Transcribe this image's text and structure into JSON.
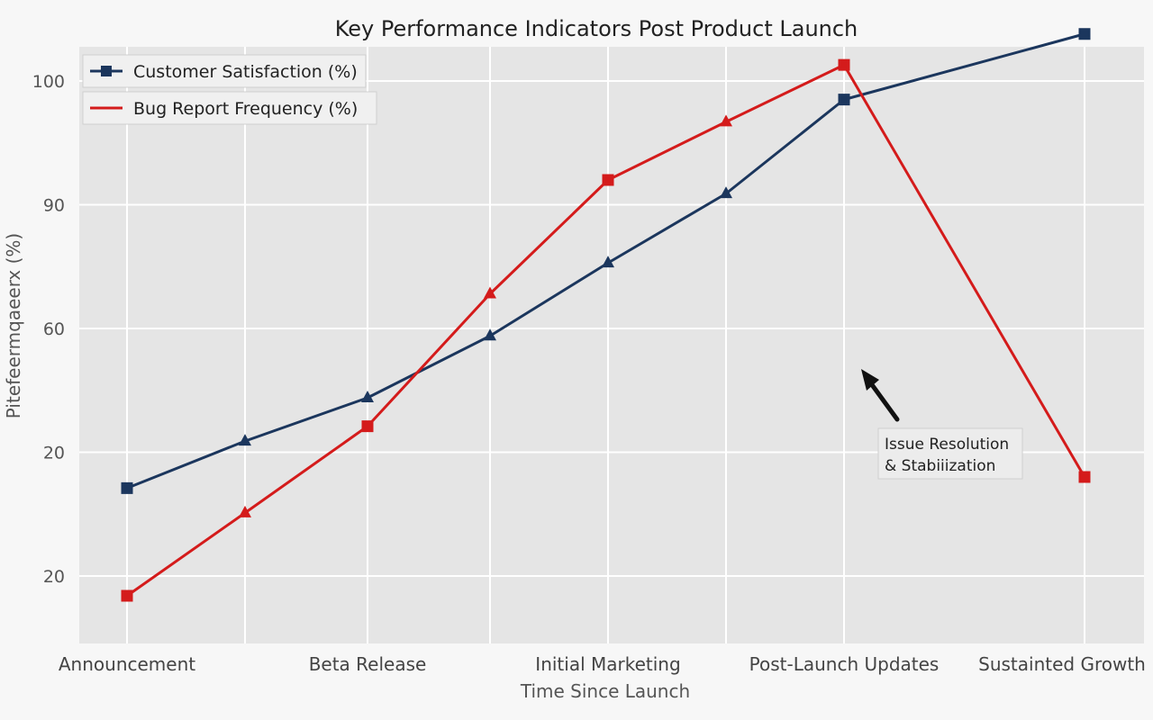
{
  "chart_data": {
    "type": "line",
    "title": "Key Performance Indicators Post Product Launch",
    "xlabel": "Time Since Launch",
    "ylabel": "Pitefeermqaeerx (%)",
    "y_tick_labels": [
      "20",
      "20",
      "60",
      "90",
      "100"
    ],
    "categories": [
      "Announcement",
      "",
      "Beta Release",
      "",
      "Initial Marketing",
      "",
      "Post-Launch Updates",
      "Sustainted Growth"
    ],
    "series": [
      {
        "name": "Customer Satisfaction (%)",
        "color": "#1b365d",
        "marker": "square",
        "values": [
          0.355,
          0.545,
          0.72,
          0.97,
          1.265,
          1.545,
          1.925,
          2.19
        ],
        "markers": [
          "square",
          "triangle",
          "triangle",
          "triangle",
          "triangle",
          "triangle",
          "square",
          "square"
        ]
      },
      {
        "name": "Bug Report Frequency (%)",
        "color": "#d41b1b",
        "marker": "square",
        "values": [
          -0.08,
          0.255,
          0.605,
          1.14,
          1.6,
          1.835,
          2.065,
          0.4
        ],
        "markers": [
          "square",
          "triangle",
          "square",
          "triangle",
          "square",
          "triangle",
          "square",
          "square"
        ]
      }
    ],
    "legend": "top-left",
    "grid": true,
    "annotation": {
      "text_line1": "Issue Resolution",
      "text_line2": "& Stabiiization"
    }
  }
}
